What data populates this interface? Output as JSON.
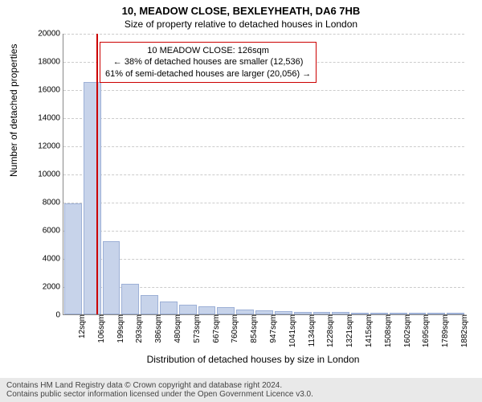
{
  "title_main": "10, MEADOW CLOSE, BEXLEYHEATH, DA6 7HB",
  "title_sub": "Size of property relative to detached houses in London",
  "chart": {
    "type": "histogram",
    "ylabel": "Number of detached properties",
    "xlabel": "Distribution of detached houses by size in London",
    "ylim": [
      0,
      20000
    ],
    "ytick_step": 2000,
    "bar_fill": "#c7d3ea",
    "bar_stroke": "#9db0d6",
    "grid_color": "#cccccc",
    "background": "#ffffff",
    "xtick_labels": [
      "12sqm",
      "106sqm",
      "199sqm",
      "293sqm",
      "386sqm",
      "480sqm",
      "573sqm",
      "667sqm",
      "760sqm",
      "854sqm",
      "947sqm",
      "1041sqm",
      "1134sqm",
      "1228sqm",
      "1321sqm",
      "1415sqm",
      "1508sqm",
      "1602sqm",
      "1695sqm",
      "1789sqm",
      "1882sqm"
    ],
    "values": [
      7900,
      16500,
      5200,
      2200,
      1400,
      900,
      700,
      600,
      500,
      350,
      300,
      250,
      200,
      180,
      150,
      120,
      100,
      90,
      80,
      70,
      60
    ],
    "marker_value_sqm": 126,
    "xmin_sqm": 12,
    "xstep_sqm": 93.5,
    "marker_color": "#cc0000",
    "annotation_border": "#cc0000",
    "annotation_line1": "10 MEADOW CLOSE: 126sqm",
    "annotation_line2": "← 38% of detached houses are smaller (12,536)",
    "annotation_line3": "61% of semi-detached houses are larger (20,056) →"
  },
  "footer_line1": "Contains HM Land Registry data © Crown copyright and database right 2024.",
  "footer_line2": "Contains public sector information licensed under the Open Government Licence v3.0."
}
